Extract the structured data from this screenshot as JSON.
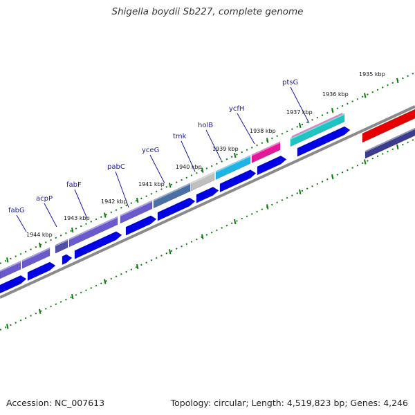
{
  "title": "Shigella boydii Sb227, complete genome",
  "accession": "Accession: NC_007613",
  "summary": "Topology: circular; Length: 4,519,823 bp; Genes: 4,246",
  "genes": [
    {
      "name": "fabG",
      "color": "#6a5acd"
    },
    {
      "name": "acpP",
      "color": "#5050a8"
    },
    {
      "name": "fabF",
      "color": "#6a5acd"
    },
    {
      "name": "pabC",
      "color": "#4a6fa5"
    },
    {
      "name": "yceG",
      "color": "#bfbfbf"
    },
    {
      "name": "tmk",
      "color": "#1eb4e6"
    },
    {
      "name": "holB",
      "color": "#e6189a"
    },
    {
      "name": "ycfH",
      "color": "#e6189a"
    },
    {
      "name": "ptsG",
      "color": "#1cc4c4"
    }
  ],
  "kbp_ticks": [
    "1944 kbp",
    "1943 kbp",
    "1942 kbp",
    "1941 kbp",
    "1940 kbp",
    "1939 kbp",
    "1938 kbp",
    "1937 kbp",
    "1936 kbp",
    "1935 kbp"
  ],
  "colors": {
    "forward_cds": "#0000e6",
    "backbone": "#8a8a8a",
    "ticks": "#0a7a0a",
    "highlight": "#e60000",
    "dark_feature": "#3c3c8c"
  }
}
